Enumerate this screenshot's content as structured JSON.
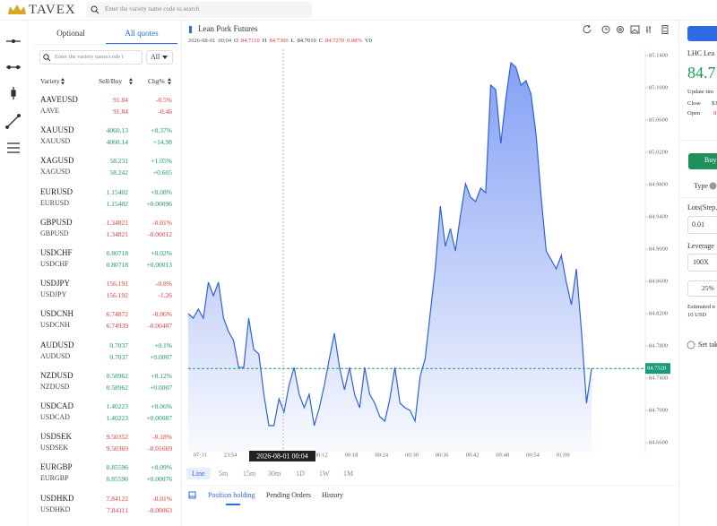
{
  "header": {
    "logo": "TAVEX",
    "search_placeholder": "Enter the variety name code to search"
  },
  "quotes": {
    "tabs": [
      "Optional",
      "All quotes"
    ],
    "search_placeholder": "Enter the variety name/code t",
    "filter": "All",
    "columns": [
      "Variety",
      "Sell/Buy",
      "Chg%"
    ],
    "up_color": "#1a9a5a",
    "down_color": "#e03a3a",
    "rows": [
      {
        "name": "AAVEUSD",
        "code": "AAVE",
        "sell": "91.84",
        "buy": "91.84",
        "chg_pct": "-0.5%",
        "chg": "-0.46",
        "color": "#e03a3a"
      },
      {
        "name": "XAUUSD",
        "code": "XAUUSD",
        "sell": "4060.13",
        "buy": "4060.14",
        "chg_pct": "+0.37%",
        "chg": "+14.98",
        "color": "#1a9a5a"
      },
      {
        "name": "XAGUSD",
        "code": "XAGUSD",
        "sell": "58.231",
        "buy": "58.242",
        "chg_pct": "+1.05%",
        "chg": "+0.605",
        "color": "#1a9a5a"
      },
      {
        "name": "EURUSD",
        "code": "EURUSD",
        "sell": "1.15402",
        "buy": "1.15402",
        "chg_pct": "+0.08%",
        "chg": "+0.00096",
        "color": "#1a9a5a"
      },
      {
        "name": "GBPUSD",
        "code": "GBPUSD",
        "sell": "1.34821",
        "buy": "1.34821",
        "chg_pct": "-0.01%",
        "chg": "-0.00012",
        "color": "#e03a3a"
      },
      {
        "name": "USDCHF",
        "code": "USDCHF",
        "sell": "0.80718",
        "buy": "0.80718",
        "chg_pct": "+0.02%",
        "chg": "+0.00013",
        "color": "#1a9a5a"
      },
      {
        "name": "USDJPY",
        "code": "USDJPY",
        "sell": "156.191",
        "buy": "156.192",
        "chg_pct": "-0.8%",
        "chg": "-1.26",
        "color": "#e03a3a"
      },
      {
        "name": "USDCNH",
        "code": "USDCNH",
        "sell": "6.74872",
        "buy": "6.74939",
        "chg_pct": "-0.06%",
        "chg": "-0.00407",
        "color": "#e03a3a"
      },
      {
        "name": "AUDUSD",
        "code": "AUDUSD",
        "sell": "0.7037",
        "buy": "0.7037",
        "chg_pct": "+0.1%",
        "chg": "+0.0007",
        "color": "#1a9a5a"
      },
      {
        "name": "NZDUSD",
        "code": "NZDUSD",
        "sell": "0.58962",
        "buy": "0.58962",
        "chg_pct": "+0.12%",
        "chg": "+0.0007",
        "color": "#1a9a5a"
      },
      {
        "name": "USDCAD",
        "code": "USDCAD",
        "sell": "1.40223",
        "buy": "1.40223",
        "chg_pct": "+0.06%",
        "chg": "+0.00087",
        "color": "#1a9a5a"
      },
      {
        "name": "USDSEK",
        "code": "USDSEK",
        "sell": "9.50352",
        "buy": "9.50369",
        "chg_pct": "-0.18%",
        "chg": "-0.01669",
        "color": "#e03a3a"
      },
      {
        "name": "EURGBP",
        "code": "EURGBP",
        "sell": "0.85596",
        "buy": "0.85596",
        "chg_pct": "+0.09%",
        "chg": "+0.00076",
        "color": "#1a9a5a"
      },
      {
        "name": "USDHKD",
        "code": "USDHKD",
        "sell": "7.84122",
        "buy": "7.84111",
        "chg_pct": "-0.01%",
        "chg": "-0.00063",
        "color": "#e03a3a"
      }
    ]
  },
  "info_line": [
    {
      "text": "2026-08-01",
      "color": "#555555"
    },
    {
      "text": "00:04",
      "color": "#555555"
    },
    {
      "text": "O",
      "color": "#333333"
    },
    {
      "text": "84.7110",
      "color": "#e03a3a"
    },
    {
      "text": "H",
      "color": "#333333"
    },
    {
      "text": "84.7300",
      "color": "#e03a3a"
    },
    {
      "text": "L",
      "color": "#333333"
    },
    {
      "text": "84.7010",
      "color": "#333333"
    },
    {
      "text": "C",
      "color": "#333333"
    },
    {
      "text": "84.7270",
      "color": "#e03a3a"
    },
    {
      "text": "0.08%",
      "color": "#e03a3a"
    },
    {
      "text": "V0",
      "color": "#333333"
    }
  ],
  "crosshair_label": "2026-08-01 00:04",
  "current_price": {
    "value": 84.752,
    "label": "84.7520"
  },
  "timeframes": [
    "Line",
    "5m",
    "15m",
    "30m",
    "1D",
    "1W",
    "1M"
  ],
  "bottom_tabs": [
    "Position holding",
    "Pending Orders",
    "History"
  ],
  "order_panel": {
    "symbol": "LHC Lea",
    "price": "84.7",
    "update": "Update tim",
    "close_label": "Close",
    "close_value": "$3",
    "open_label": "Open",
    "open_value": "8",
    "buy": "Buy",
    "type": "Type",
    "lots_label": "Lots(Step.",
    "lots": "0.01",
    "leverage_label": "Leverage",
    "leverage": "100X",
    "percent": "25%",
    "estimated_label": "Estimated n",
    "estimated": "10 USD",
    "take_profit": "Set tak"
  },
  "chart_data": {
    "type": "line",
    "title": "Lean Pork Futures",
    "color": "#2f62d8",
    "fill_color": "#7d9bf3",
    "categories": [
      null,
      null,
      "07-31",
      null,
      null,
      null,
      null,
      null,
      "23:54",
      null,
      null,
      null,
      null,
      null,
      null,
      null,
      null,
      null,
      null,
      null,
      null,
      null,
      null,
      null,
      null,
      null,
      "00:12",
      null,
      null,
      null,
      null,
      null,
      "00:18",
      null,
      null,
      null,
      null,
      null,
      "00:24",
      null,
      null,
      null,
      null,
      null,
      "00:30",
      null,
      null,
      null,
      null,
      null,
      "00:36",
      null,
      null,
      null,
      null,
      null,
      "00:42",
      null,
      null,
      null,
      null,
      null,
      "00:48",
      null,
      null,
      null,
      null,
      null,
      "00:54",
      null,
      null,
      null,
      null,
      null,
      "01:00",
      null,
      null,
      null,
      null,
      null,
      null
    ],
    "values": [
      84.82,
      84.8144,
      84.8256,
      84.8144,
      84.8589,
      84.8422,
      84.8589,
      84.8144,
      84.7978,
      84.7867,
      84.7533,
      84.7533,
      84.8144,
      84.7756,
      84.77,
      84.72,
      84.6811,
      84.6811,
      84.7144,
      84.6978,
      84.7311,
      84.7533,
      84.72,
      84.7033,
      84.72,
      84.6811,
      84.7033,
      84.7311,
      84.7644,
      84.7956,
      84.7533,
      84.7256,
      84.7533,
      84.72,
      84.7033,
      84.7533,
      84.72,
      84.7089,
      84.6922,
      84.6867,
      84.7144,
      84.7533,
      84.7089,
      84.7033,
      84.7,
      84.6867,
      84.7422,
      84.7644,
      84.82,
      84.8756,
      84.9533,
      84.9033,
      84.9256,
      84.8978,
      84.9422,
      84.9811,
      84.9644,
      84.9589,
      84.9756,
      84.97,
      85.1033,
      85.0978,
      85.0311,
      85.0867,
      85.1311,
      85.1256,
      85.1033,
      85.1089,
      85.0922,
      85.0422,
      84.9644,
      84.8978,
      84.8867,
      84.8756,
      84.8922,
      84.8589,
      84.8311,
      84.8756,
      84.7978,
      84.7089,
      84.752
    ],
    "ylim": [
      84.66,
      85.14
    ],
    "yticks": [
      {
        "value": 84.66,
        "label": "84.6600"
      },
      {
        "value": 84.7,
        "label": "84.7000"
      },
      {
        "value": 84.74,
        "label": "84.7400"
      },
      {
        "value": 84.78,
        "label": "84.7800"
      },
      {
        "value": 84.82,
        "label": "84.8200"
      },
      {
        "value": 84.86,
        "label": "84.8600"
      },
      {
        "value": 84.9,
        "label": "84.9000"
      },
      {
        "value": 84.94,
        "label": "84.9400"
      },
      {
        "value": 84.98,
        "label": "84.9800"
      },
      {
        "value": 85.02,
        "label": "85.0200"
      },
      {
        "value": 85.06,
        "label": "85.0600"
      },
      {
        "value": 85.1,
        "label": "85.1000"
      },
      {
        "value": 85.14,
        "label": "85.1400"
      }
    ],
    "grid": false
  }
}
